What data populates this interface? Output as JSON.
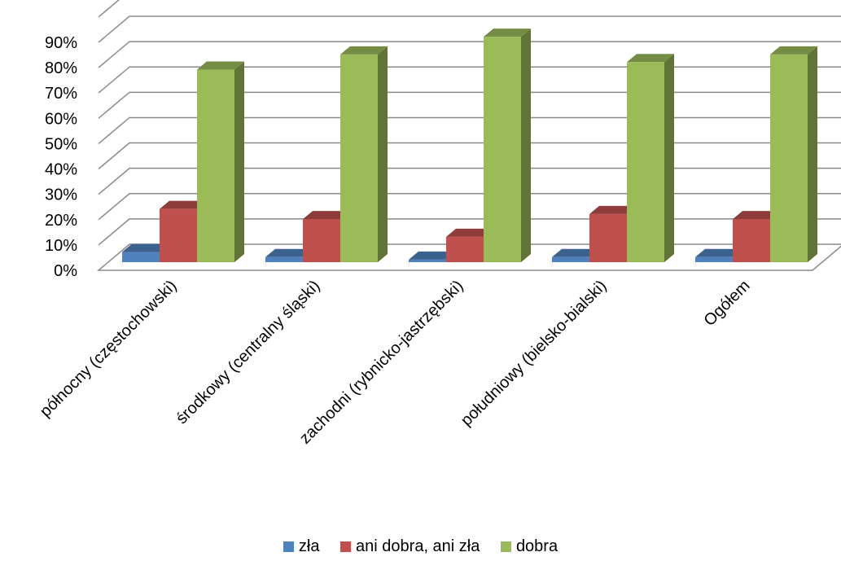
{
  "chart_data": {
    "type": "bar",
    "categories": [
      "północny (częstochowski)",
      "środkowy (centralny śląski)",
      "zachodni (rybnicko-jastrzębski)",
      "południowy (bielsko-bialski)",
      "Ogółem"
    ],
    "series": [
      {
        "name": "zła",
        "values": [
          4,
          2,
          1,
          2,
          2
        ],
        "color": "#4F81BD"
      },
      {
        "name": "ani dobra, ani zła",
        "values": [
          21,
          17,
          10,
          19,
          17
        ],
        "color": "#C0504D"
      },
      {
        "name": "dobra",
        "values": [
          76,
          82,
          89,
          79,
          82
        ],
        "color": "#9BBB59"
      }
    ],
    "y_ticks": [
      "0%",
      "10%",
      "20%",
      "30%",
      "40%",
      "50%",
      "60%",
      "70%",
      "80%",
      "90%"
    ],
    "ylim": [
      0,
      90
    ],
    "y_unit": "%",
    "grid": true,
    "legend_position": "bottom",
    "style": "3d-clustered-column"
  }
}
